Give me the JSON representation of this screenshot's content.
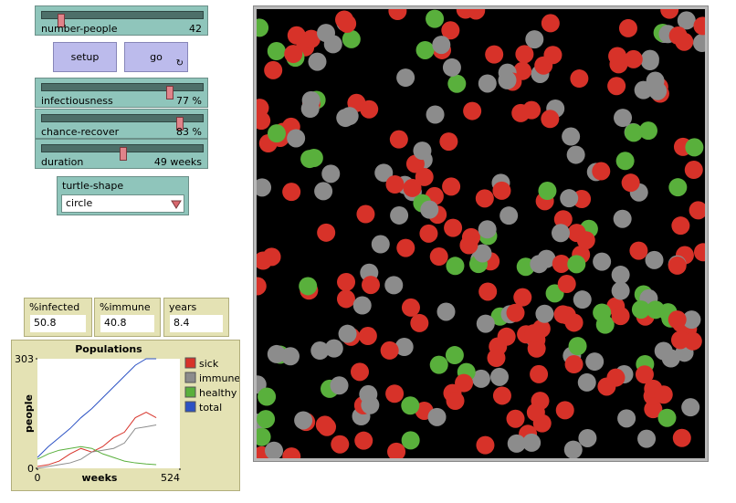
{
  "sliders": [
    {
      "label": "number-people",
      "value": "42"
    },
    {
      "label": "infectiousness",
      "value": "77 %"
    },
    {
      "label": "chance-recover",
      "value": "83 %"
    },
    {
      "label": "duration",
      "value": "49 weeks"
    }
  ],
  "buttons": [
    {
      "label": "setup"
    },
    {
      "label": "go"
    }
  ],
  "chooser": {
    "label": "turtle-shape",
    "value": "circle"
  },
  "monitors": [
    {
      "label": "%infected",
      "value": "50.8"
    },
    {
      "label": "%immune",
      "value": "40.8"
    },
    {
      "label": "years",
      "value": "8.4"
    }
  ],
  "chart_data": {
    "type": "line",
    "title": "Populations",
    "x_label": "weeks",
    "y_label": "people",
    "xlim": [
      0,
      524
    ],
    "ylim": [
      0,
      303
    ],
    "xticks": [
      0,
      524
    ],
    "yticks": [
      0,
      303
    ],
    "x": [
      0,
      40,
      80,
      120,
      160,
      200,
      240,
      280,
      320,
      360,
      400,
      437
    ],
    "series": [
      {
        "name": "sick",
        "color": "#d73229",
        "values": [
          5,
          10,
          20,
          40,
          55,
          45,
          60,
          85,
          100,
          140,
          155,
          140
        ]
      },
      {
        "name": "immune",
        "color": "#8c8c8c",
        "values": [
          0,
          5,
          10,
          15,
          25,
          45,
          50,
          55,
          70,
          110,
          115,
          120
        ]
      },
      {
        "name": "healthy",
        "color": "#59b03c",
        "values": [
          25,
          40,
          50,
          55,
          60,
          55,
          40,
          30,
          20,
          15,
          12,
          10
        ]
      },
      {
        "name": "total",
        "color": "#2c52c4",
        "values": [
          30,
          60,
          85,
          110,
          140,
          165,
          195,
          225,
          255,
          285,
          303,
          303
        ]
      }
    ]
  }
}
